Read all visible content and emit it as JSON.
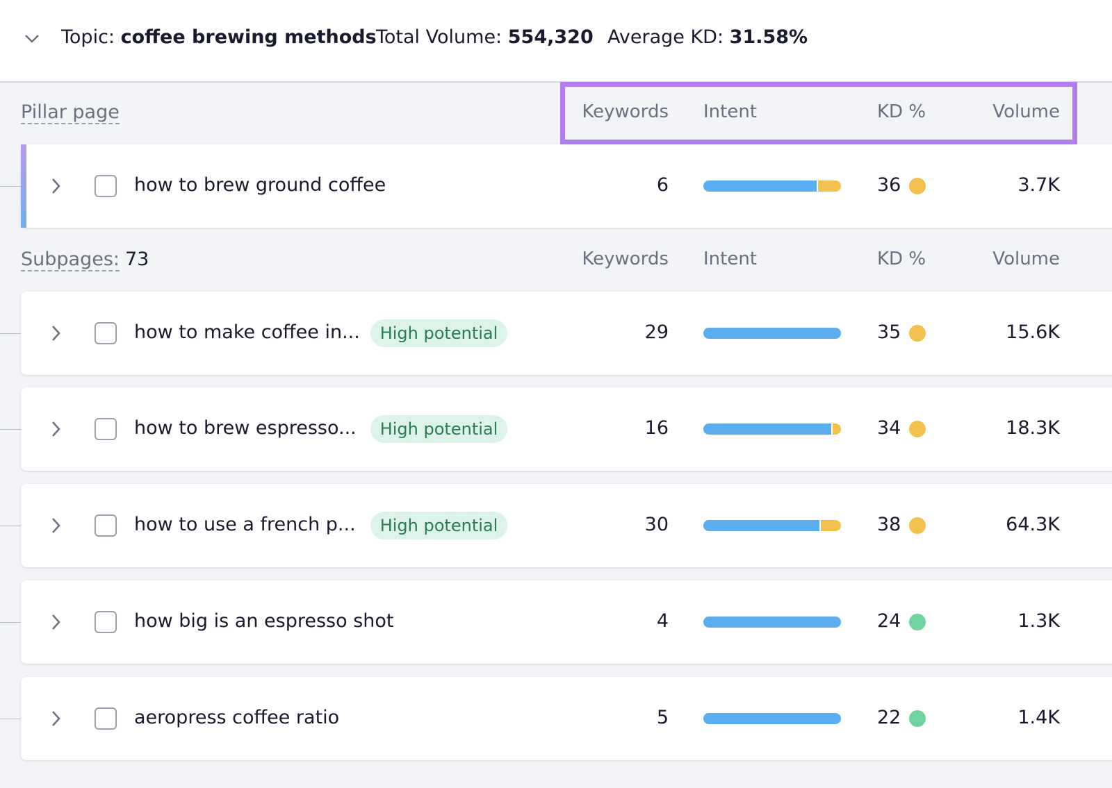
{
  "header": {
    "topic_label": "Topic:",
    "topic": "coffee brewing methods",
    "volume_label": "Total Volume:",
    "volume": "554,320",
    "kd_label": "Average KD:",
    "kd": "31.58%"
  },
  "intent_colors": [
    "#5aaef0",
    "#f2c14e"
  ],
  "pillar": {
    "label": "Pillar page",
    "columns": [
      "Keywords",
      "Intent",
      "KD %",
      "Volume"
    ],
    "rows": [
      {
        "title": "how to brew ground coffee",
        "keywords": 6,
        "intent": [
          83,
          17
        ],
        "kd": 36,
        "kd_color": "#f2c14e",
        "volume": "3.7K"
      }
    ]
  },
  "subpages": {
    "label": "Subpages:",
    "count": 73,
    "columns": [
      "Keywords",
      "Intent",
      "KD %",
      "Volume"
    ],
    "rows": [
      {
        "title": "how to make coffee in...",
        "badge": "High potential",
        "keywords": 29,
        "intent": [
          100
        ],
        "kd": 35,
        "kd_color": "#f2c14e",
        "volume": "15.6K"
      },
      {
        "title": "how to brew espresso...",
        "badge": "High potential",
        "keywords": 16,
        "intent": [
          94,
          6
        ],
        "kd": 34,
        "kd_color": "#f2c14e",
        "volume": "18.3K"
      },
      {
        "title": "how to use a french p...",
        "badge": "High potential",
        "keywords": 30,
        "intent": [
          85,
          15
        ],
        "kd": 38,
        "kd_color": "#f2c14e",
        "volume": "64.3K"
      },
      {
        "title": "how big is an espresso shot",
        "keywords": 4,
        "intent": [
          100
        ],
        "kd": 24,
        "kd_color": "#6fd3a0",
        "volume": "1.3K"
      },
      {
        "title": "aeropress coffee ratio",
        "keywords": 5,
        "intent": [
          100
        ],
        "kd": 22,
        "kd_color": "#6fd3a0",
        "volume": "1.4K"
      }
    ]
  }
}
